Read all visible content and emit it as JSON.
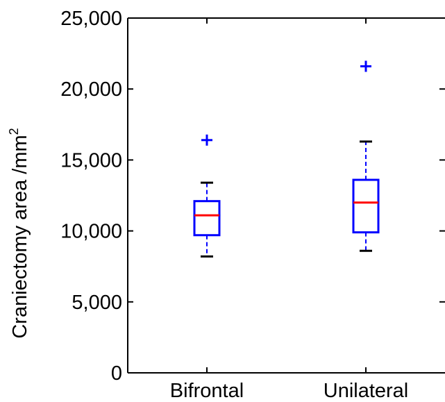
{
  "chart_data": {
    "type": "box",
    "title": "",
    "xlabel": "",
    "ylabel": "Craniectomy area /mm",
    "ylabel_superscript": "2",
    "ylim": [
      0,
      25000
    ],
    "yticks": [
      0,
      5000,
      10000,
      15000,
      20000,
      25000
    ],
    "ytick_labels": [
      "0",
      "5,000",
      "10,000",
      "15,000",
      "20,000",
      "25,000"
    ],
    "categories": [
      "Bifrontal",
      "Unilateral"
    ],
    "grid": false,
    "colors": {
      "box": "#0000ff",
      "median": "#ff0000",
      "whisker_cap": "#000000",
      "outlier": "#0000ff",
      "axis": "#000000"
    },
    "boxes": [
      {
        "category": "Bifrontal",
        "whisker_low": 8200,
        "q1": 9700,
        "median": 11100,
        "q3": 12100,
        "whisker_high": 13400,
        "outliers": [
          16400
        ]
      },
      {
        "category": "Unilateral",
        "whisker_low": 8600,
        "q1": 9900,
        "median": 12000,
        "q3": 13600,
        "whisker_high": 16300,
        "outliers": [
          21600
        ]
      }
    ]
  }
}
